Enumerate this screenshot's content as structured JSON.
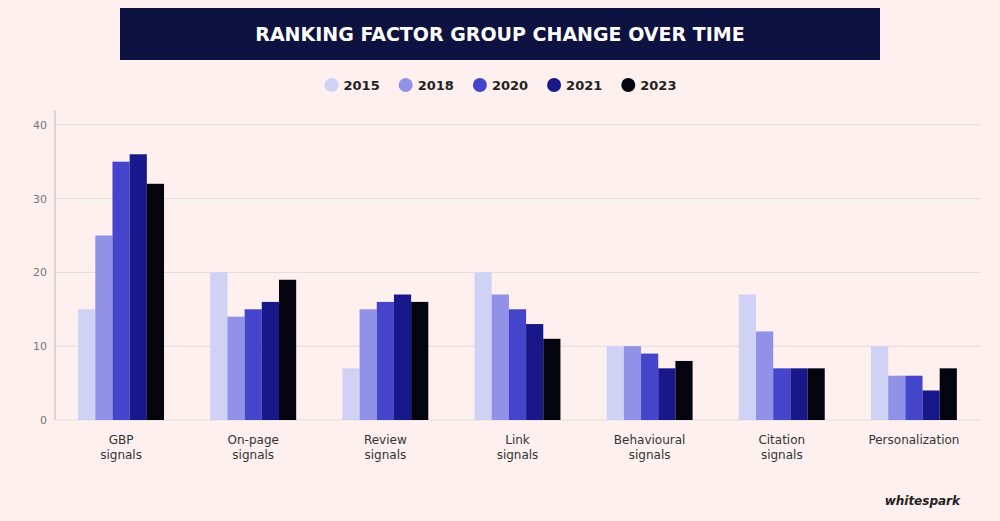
{
  "chart_data": {
    "type": "bar",
    "title": "RANKING FACTOR GROUP CHANGE OVER TIME",
    "categories": [
      "GBP\nsignals",
      "On-page\nsignals",
      "Review\nsignals",
      "Link\nsignals",
      "Behavioural\nsignals",
      "Citation\nsignals",
      "Personalization"
    ],
    "series": [
      {
        "name": "2015",
        "color": "#cfd1f5",
        "values": [
          15,
          20,
          7,
          20,
          10,
          17,
          10
        ]
      },
      {
        "name": "2018",
        "color": "#9191e8",
        "values": [
          25,
          14,
          15,
          17,
          10,
          12,
          6
        ]
      },
      {
        "name": "2020",
        "color": "#4545cc",
        "values": [
          35,
          15,
          16,
          15,
          9,
          7,
          6
        ]
      },
      {
        "name": "2021",
        "color": "#18188a",
        "values": [
          36,
          16,
          17,
          13,
          7,
          7,
          4
        ]
      },
      {
        "name": "2023",
        "color": "#04040f",
        "values": [
          32,
          19,
          16,
          11,
          8,
          7,
          7
        ]
      }
    ],
    "ylim": [
      0,
      42
    ],
    "yticks": [
      0,
      10,
      20,
      30,
      40
    ],
    "grid": true,
    "legend": "top",
    "annotations": [
      "whitespark"
    ]
  }
}
